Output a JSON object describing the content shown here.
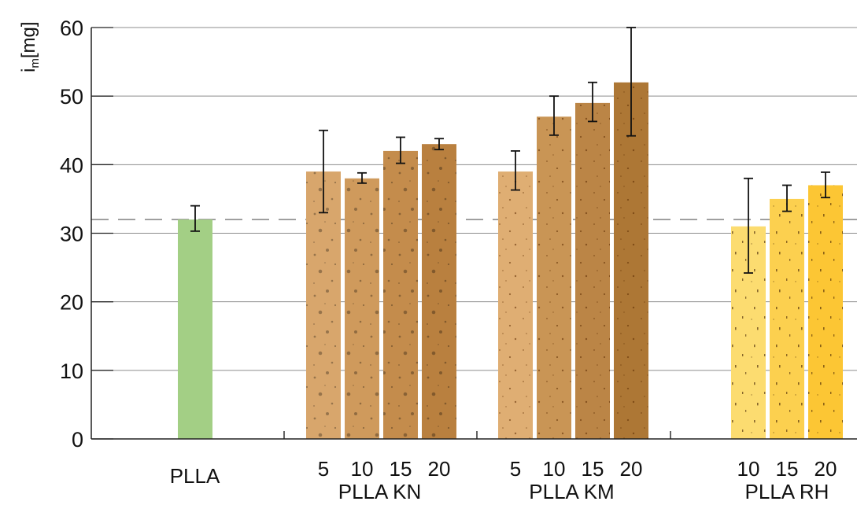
{
  "chart_data": {
    "type": "bar",
    "ylabel": "i",
    "ylabel_sub": "m",
    "ylabel_unit": "[mg]",
    "ylim": [
      0,
      60
    ],
    "yticks": [
      0,
      10,
      20,
      30,
      40,
      50,
      60
    ],
    "grid": true,
    "reference_line": 32,
    "groups": [
      {
        "name": "PLLA",
        "bars": [
          {
            "label": "",
            "value": 32,
            "err_low": 30.3,
            "err_high": 34,
            "color": "#a3cf85"
          }
        ]
      },
      {
        "name": "PLLA KN",
        "bars": [
          {
            "label": "5",
            "value": 39,
            "err_low": 33,
            "err_high": 45,
            "color": "#d8a66c"
          },
          {
            "label": "10",
            "value": 38,
            "err_low": 37.3,
            "err_high": 38.8,
            "color": "#cf9a5c"
          },
          {
            "label": "15",
            "value": 42,
            "err_low": 40.2,
            "err_high": 44,
            "color": "#c48c4c"
          },
          {
            "label": "20",
            "value": 43,
            "err_low": 42.2,
            "err_high": 43.8,
            "color": "#b9803f"
          }
        ]
      },
      {
        "name": "PLLA KM",
        "bars": [
          {
            "label": "5",
            "value": 39,
            "err_low": 36.3,
            "err_high": 42,
            "color": "#dfae73"
          },
          {
            "label": "10",
            "value": 47,
            "err_low": 44.3,
            "err_high": 50,
            "color": "#c99555"
          },
          {
            "label": "15",
            "value": 49,
            "err_low": 46.3,
            "err_high": 52,
            "color": "#bb8546"
          },
          {
            "label": "20",
            "value": 52,
            "err_low": 44.2,
            "err_high": 60,
            "color": "#ad7735"
          }
        ]
      },
      {
        "name": "PLLA RH",
        "bars": [
          {
            "label": "10",
            "value": 31,
            "err_low": 24.2,
            "err_high": 38,
            "color": "#fcdc70"
          },
          {
            "label": "15",
            "value": 35,
            "err_low": 33.2,
            "err_high": 37,
            "color": "#fcd04f"
          },
          {
            "label": "20",
            "value": 37,
            "err_low": 35.2,
            "err_high": 38.9,
            "color": "#fcc634"
          }
        ]
      }
    ]
  }
}
